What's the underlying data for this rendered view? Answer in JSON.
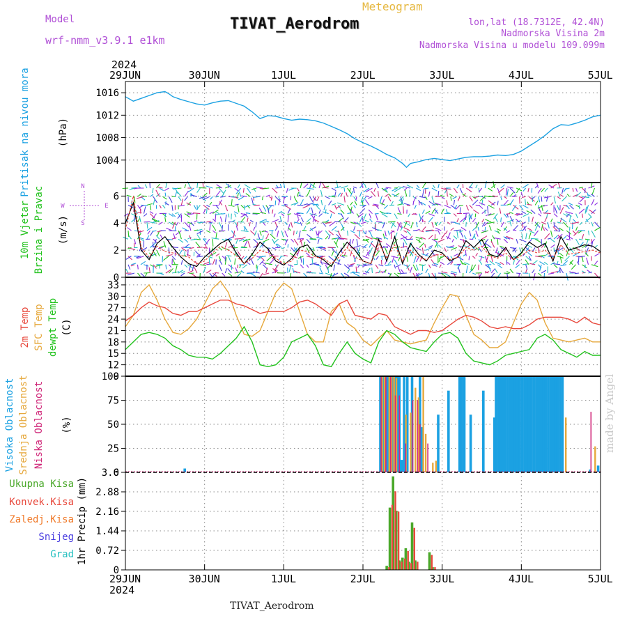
{
  "header": {
    "model_label": "Model",
    "model_value": "wrf-nmm_v3.9.1  e1km",
    "meteogram_label": "Meteogram",
    "station_title": "TIVAT_Aerodrom",
    "lonlat": "lon,lat (18.7312E, 42.4N)",
    "altitude": "Nadmorska Visina 2m",
    "model_altitude": "Nadmorska Visina u modelu 109.099m"
  },
  "footer": {
    "station": "TIVAT_Aerodrom",
    "credit": "made by Angel"
  },
  "time_axis": {
    "year": "2024",
    "labels": [
      "29JUN",
      "30JUN",
      "1JUL",
      "2JUL",
      "3JUL",
      "4JUL",
      "5JUL"
    ]
  },
  "colors": {
    "pressure": "#1ba1e2",
    "t2m": "#e8483c",
    "sfc": "#e6a83c",
    "dewpt": "#21c21c",
    "high_cloud": "#1ba1e2",
    "mid_cloud": "#e6a83c",
    "low_cloud": "#d0297a",
    "total_precip": "#4aa82a",
    "conv_precip": "#e8483c",
    "frozen": "#f07a2a",
    "snow": "#4a3ee0",
    "hail": "#26c0c0",
    "wind_speed": "#000000",
    "wind_gust": "#e8483c"
  },
  "chart_data": [
    {
      "id": "pressure",
      "type": "line",
      "ylabel_name": "Pritisak na nivou mora",
      "ylabel_unit": "(hPa)",
      "ylim": [
        1000,
        1018
      ],
      "yticks": [
        1004,
        1008,
        1012,
        1016
      ],
      "x_days": [
        0,
        0.1,
        0.2,
        0.3,
        0.4,
        0.5,
        0.55,
        0.6,
        0.7,
        0.8,
        0.9,
        1.0,
        1.1,
        1.2,
        1.3,
        1.4,
        1.5,
        1.6,
        1.7,
        1.8,
        1.9,
        2.0,
        2.1,
        2.2,
        2.3,
        2.4,
        2.5,
        2.6,
        2.7,
        2.8,
        2.9,
        3.0,
        3.1,
        3.2,
        3.3,
        3.4,
        3.5,
        3.55,
        3.6,
        3.7,
        3.8,
        3.9,
        4.0,
        4.1,
        4.2,
        4.3,
        4.4,
        4.5,
        4.6,
        4.7,
        4.8,
        4.9,
        5.0,
        5.1,
        5.2,
        5.3,
        5.4,
        5.5,
        5.6,
        5.7,
        5.8,
        5.9,
        6.0
      ],
      "values": [
        1015.3,
        1014.5,
        1015.0,
        1015.5,
        1016.0,
        1016.2,
        1015.8,
        1015.3,
        1014.8,
        1014.4,
        1014.0,
        1013.8,
        1014.2,
        1014.5,
        1014.6,
        1014.1,
        1013.6,
        1012.6,
        1011.4,
        1011.9,
        1011.8,
        1011.4,
        1011.1,
        1011.3,
        1011.2,
        1011.0,
        1010.6,
        1010.0,
        1009.4,
        1008.7,
        1007.8,
        1007.1,
        1006.5,
        1005.8,
        1005.0,
        1004.4,
        1003.4,
        1002.7,
        1003.4,
        1003.7,
        1004.1,
        1004.3,
        1004.1,
        1003.9,
        1004.2,
        1004.5,
        1004.6,
        1004.6,
        1004.7,
        1004.9,
        1004.8,
        1005.0,
        1005.6,
        1006.5,
        1007.4,
        1008.4,
        1009.6,
        1010.3,
        1010.2,
        1010.6,
        1011.1,
        1011.7,
        1012.0
      ]
    },
    {
      "id": "wind",
      "type": "line",
      "ylabel_name": "10m Vjetar",
      "ylabel_name2": "Brzina i Pravac",
      "ylabel_unit": "(m/s)",
      "compass": [
        "N",
        "S",
        "W",
        "E"
      ],
      "ylim": [
        0,
        7
      ],
      "yticks": [
        0,
        2,
        4,
        6
      ],
      "x_days": [
        0,
        0.1,
        0.2,
        0.3,
        0.4,
        0.5,
        0.6,
        0.7,
        0.8,
        0.9,
        1.0,
        1.1,
        1.2,
        1.3,
        1.4,
        1.5,
        1.6,
        1.7,
        1.8,
        1.9,
        2.0,
        2.1,
        2.2,
        2.3,
        2.4,
        2.5,
        2.6,
        2.7,
        2.8,
        2.9,
        3.0,
        3.1,
        3.2,
        3.3,
        3.4,
        3.5,
        3.6,
        3.7,
        3.8,
        3.9,
        4.0,
        4.1,
        4.2,
        4.3,
        4.4,
        4.5,
        4.6,
        4.7,
        4.8,
        4.9,
        5.0,
        5.1,
        5.2,
        5.3,
        5.4,
        5.5,
        5.6,
        5.7,
        5.8,
        5.9,
        6.0
      ],
      "speed": [
        4.0,
        5.5,
        2.0,
        1.3,
        2.5,
        3.0,
        2.2,
        1.5,
        1.0,
        0.8,
        1.5,
        2.0,
        2.5,
        2.8,
        1.8,
        1.0,
        1.7,
        2.6,
        2.1,
        1.2,
        0.9,
        1.4,
        2.2,
        2.4,
        1.6,
        1.3,
        0.8,
        1.8,
        2.6,
        2.0,
        1.2,
        1.0,
        2.8,
        1.2,
        3.0,
        1.0,
        2.5,
        1.7,
        1.2,
        2.0,
        1.8,
        1.2,
        1.5,
        2.7,
        2.2,
        2.8,
        1.7,
        1.5,
        2.2,
        1.3,
        1.8,
        2.6,
        2.2,
        2.5,
        1.2,
        3.0,
        2.0,
        2.2,
        2.4,
        2.3,
        1.9
      ],
      "gust": [
        3.5,
        6.0,
        2.2,
        1.5,
        2.3,
        1.9,
        1.8,
        1.6,
        1.5,
        1.0,
        1.2,
        1.8,
        2.3,
        2.0,
        1.6,
        1.0,
        1.4,
        2.0,
        1.8,
        1.4,
        1.0,
        1.2,
        2.0,
        1.9,
        1.5,
        1.4,
        1.0,
        1.5,
        2.2,
        1.5,
        1.2,
        1.0,
        2.5,
        1.4,
        2.4,
        1.2,
        2.0,
        1.5,
        1.3,
        1.6,
        1.7,
        1.3,
        1.5,
        2.2,
        2.0,
        2.3,
        1.6,
        1.4,
        1.8,
        1.3,
        1.6,
        2.0,
        1.8,
        2.0,
        1.4,
        2.4,
        1.7,
        1.8,
        1.9,
        2.0,
        1.8
      ]
    },
    {
      "id": "temperature",
      "type": "line",
      "ylabel_names": [
        "2m Temp",
        "SFC Temp",
        "dewpt Temp"
      ],
      "ylabel_unit": "(C)",
      "ylim": [
        9,
        35
      ],
      "yticks": [
        9,
        12,
        15,
        18,
        21,
        24,
        27,
        30,
        33
      ],
      "x_days": [
        0,
        0.1,
        0.2,
        0.3,
        0.4,
        0.5,
        0.6,
        0.7,
        0.8,
        0.9,
        1.0,
        1.1,
        1.2,
        1.3,
        1.4,
        1.5,
        1.6,
        1.7,
        1.8,
        1.9,
        2.0,
        2.1,
        2.2,
        2.3,
        2.4,
        2.5,
        2.6,
        2.7,
        2.8,
        2.9,
        3.0,
        3.1,
        3.2,
        3.3,
        3.4,
        3.5,
        3.6,
        3.7,
        3.8,
        3.9,
        4.0,
        4.1,
        4.2,
        4.3,
        4.4,
        4.5,
        4.6,
        4.7,
        4.8,
        4.9,
        5.0,
        5.1,
        5.2,
        5.3,
        5.4,
        5.5,
        5.6,
        5.7,
        5.8,
        5.9,
        6.0
      ],
      "t2m": [
        23.5,
        25.0,
        27.0,
        28.5,
        27.5,
        27.0,
        25.5,
        25.0,
        26.0,
        26.0,
        27.0,
        28.0,
        29.0,
        29.0,
        28.0,
        27.5,
        26.5,
        25.5,
        26.0,
        26.0,
        26.0,
        27.0,
        28.5,
        29.0,
        28.0,
        26.5,
        25.0,
        28.0,
        29.0,
        25.0,
        24.5,
        24.0,
        25.5,
        25.0,
        22.0,
        21.0,
        20.0,
        21.0,
        21.0,
        20.5,
        21.0,
        22.5,
        24.0,
        25.0,
        24.5,
        23.5,
        22.0,
        21.5,
        22.0,
        21.5,
        21.5,
        22.5,
        24.0,
        24.5,
        24.5,
        24.5,
        24.0,
        23.0,
        24.5,
        23.0,
        22.5
      ],
      "sfc": [
        22.0,
        25.0,
        31.0,
        33.0,
        29.0,
        24.0,
        20.5,
        20.0,
        21.5,
        24.0,
        28.0,
        32.0,
        34.0,
        31.0,
        25.0,
        20.0,
        19.5,
        21.0,
        26.0,
        31.0,
        33.5,
        32.0,
        26.0,
        20.0,
        18.0,
        18.0,
        26.0,
        28.0,
        23.0,
        21.5,
        18.5,
        17.0,
        19.0,
        21.0,
        18.5,
        18.0,
        17.5,
        18.0,
        18.5,
        23.0,
        27.0,
        30.5,
        30.0,
        25.0,
        20.0,
        18.5,
        16.5,
        16.5,
        18.0,
        23.0,
        28.0,
        31.0,
        29.0,
        23.0,
        19.0,
        18.5,
        18.0,
        18.5,
        19.0,
        18.0,
        18.0
      ],
      "dewpt": [
        16.0,
        18.0,
        20.0,
        20.5,
        20.0,
        19.0,
        17.0,
        16.0,
        14.5,
        14.0,
        14.0,
        13.5,
        15.0,
        17.0,
        19.0,
        22.0,
        18.0,
        12.0,
        11.5,
        12.0,
        14.0,
        18.0,
        19.0,
        20.0,
        17.0,
        12.0,
        11.5,
        15.0,
        18.0,
        15.0,
        13.5,
        12.5,
        18.0,
        21.0,
        20.0,
        18.0,
        16.5,
        16.0,
        15.5,
        18.0,
        20.0,
        20.5,
        19.0,
        15.0,
        13.0,
        12.5,
        12.0,
        13.0,
        14.5,
        15.0,
        15.5,
        16.0,
        19.0,
        20.0,
        18.5,
        16.0,
        15.0,
        14.0,
        15.5,
        14.5,
        14.5
      ]
    },
    {
      "id": "clouds",
      "type": "bar",
      "ylabel_names": [
        "Visoka Oblacnost",
        "Srednja Oblacnost",
        "Niska Oblacnost"
      ],
      "ylabel_unit": "(%)",
      "ylim": [
        0,
        100
      ],
      "yticks": [
        0,
        25,
        50,
        75,
        100
      ],
      "high": [
        [
          0.75,
          4
        ],
        [
          3.22,
          100
        ],
        [
          3.25,
          100
        ],
        [
          3.28,
          100
        ],
        [
          3.31,
          100
        ],
        [
          3.34,
          100
        ],
        [
          3.37,
          100
        ],
        [
          3.4,
          100
        ],
        [
          3.43,
          100
        ],
        [
          3.46,
          100
        ],
        [
          3.49,
          13
        ],
        [
          3.52,
          100
        ],
        [
          3.56,
          100
        ],
        [
          3.62,
          100
        ],
        [
          3.72,
          100
        ],
        [
          3.75,
          47
        ],
        [
          3.95,
          60
        ],
        [
          4.08,
          85
        ],
        [
          4.22,
          100
        ],
        [
          4.25,
          100
        ],
        [
          4.28,
          100
        ],
        [
          4.36,
          60
        ],
        [
          4.52,
          85
        ],
        [
          4.66,
          57
        ],
        [
          4.68,
          100
        ],
        [
          4.71,
          100
        ],
        [
          4.74,
          100
        ],
        [
          4.77,
          100
        ],
        [
          4.8,
          100
        ],
        [
          4.83,
          100
        ],
        [
          4.86,
          100
        ],
        [
          4.89,
          100
        ],
        [
          4.92,
          100
        ],
        [
          4.95,
          100
        ],
        [
          4.98,
          100
        ],
        [
          5.01,
          100
        ],
        [
          5.04,
          100
        ],
        [
          5.07,
          100
        ],
        [
          5.1,
          100
        ],
        [
          5.13,
          100
        ],
        [
          5.16,
          100
        ],
        [
          5.19,
          100
        ],
        [
          5.22,
          100
        ],
        [
          5.25,
          100
        ],
        [
          5.28,
          100
        ],
        [
          5.31,
          100
        ],
        [
          5.34,
          100
        ],
        [
          5.37,
          100
        ],
        [
          5.4,
          100
        ],
        [
          5.43,
          100
        ],
        [
          5.46,
          100
        ],
        [
          5.49,
          100
        ],
        [
          5.52,
          100
        ],
        [
          5.87,
          3
        ],
        [
          5.97,
          7
        ]
      ],
      "mid": [
        [
          3.23,
          100
        ],
        [
          3.26,
          100
        ],
        [
          3.32,
          100
        ],
        [
          3.35,
          100
        ],
        [
          3.38,
          100
        ],
        [
          3.41,
          98
        ],
        [
          3.53,
          60
        ],
        [
          3.59,
          62
        ],
        [
          3.65,
          88
        ],
        [
          3.69,
          78
        ],
        [
          3.75,
          100
        ],
        [
          3.78,
          40
        ],
        [
          3.87,
          10
        ],
        [
          3.91,
          12
        ],
        [
          5.55,
          57
        ],
        [
          5.92,
          27
        ]
      ],
      "low": [
        [
          3.24,
          100
        ],
        [
          3.3,
          100
        ],
        [
          3.36,
          100
        ],
        [
          3.42,
          80
        ],
        [
          3.47,
          80
        ],
        [
          3.55,
          30
        ],
        [
          3.64,
          75
        ],
        [
          3.7,
          75
        ],
        [
          3.73,
          50
        ],
        [
          3.83,
          30
        ],
        [
          5.89,
          63
        ]
      ]
    },
    {
      "id": "precip",
      "type": "bar",
      "ylabel_names": [
        "Ukupna Kisa",
        "Konvek.Kisa",
        "Zaledj.Kisa",
        "Snijeg",
        "Grad"
      ],
      "ylabel_unit": "1hr Precip (mm)",
      "ylim": [
        0,
        3.6
      ],
      "yticks": [
        0,
        0.72,
        1.44,
        2.16,
        2.88,
        3.6
      ],
      "total": [
        [
          3.3,
          0.15
        ],
        [
          3.34,
          2.3
        ],
        [
          3.38,
          3.45
        ],
        [
          3.42,
          2.18
        ],
        [
          3.46,
          0.35
        ],
        [
          3.5,
          0.45
        ],
        [
          3.54,
          0.8
        ],
        [
          3.58,
          0.3
        ],
        [
          3.62,
          1.75
        ],
        [
          3.66,
          0.35
        ],
        [
          3.84,
          0.65
        ],
        [
          3.88,
          0.1
        ]
      ],
      "convective": [
        [
          3.31,
          0.1
        ],
        [
          3.35,
          2.4
        ],
        [
          3.39,
          2.9
        ],
        [
          3.43,
          2.15
        ],
        [
          3.47,
          0.3
        ],
        [
          3.51,
          0.42
        ],
        [
          3.55,
          0.7
        ],
        [
          3.59,
          0.25
        ],
        [
          3.63,
          1.55
        ],
        [
          3.67,
          0.3
        ],
        [
          3.85,
          0.55
        ],
        [
          3.89,
          0.1
        ]
      ]
    }
  ]
}
